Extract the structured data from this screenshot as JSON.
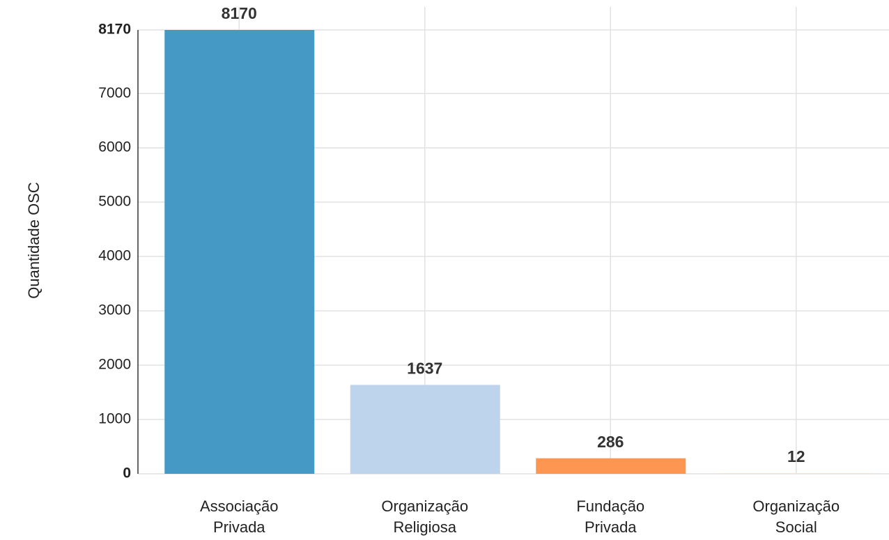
{
  "chart_data": {
    "type": "bar",
    "y_label": "Quantidade OSC",
    "categories": [
      "Associação Privada",
      "Organização Religiosa",
      "Fundação Privada",
      "Organização Social"
    ],
    "values": [
      8170,
      1637,
      286,
      12
    ],
    "colors": [
      "#4499c5",
      "#bed4ec",
      "#fd9650",
      "#fde1cb"
    ],
    "ylim": [
      0,
      8170
    ],
    "yticks": [
      0,
      1000,
      2000,
      3000,
      4000,
      5000,
      6000,
      7000,
      8170
    ],
    "grid": true
  }
}
